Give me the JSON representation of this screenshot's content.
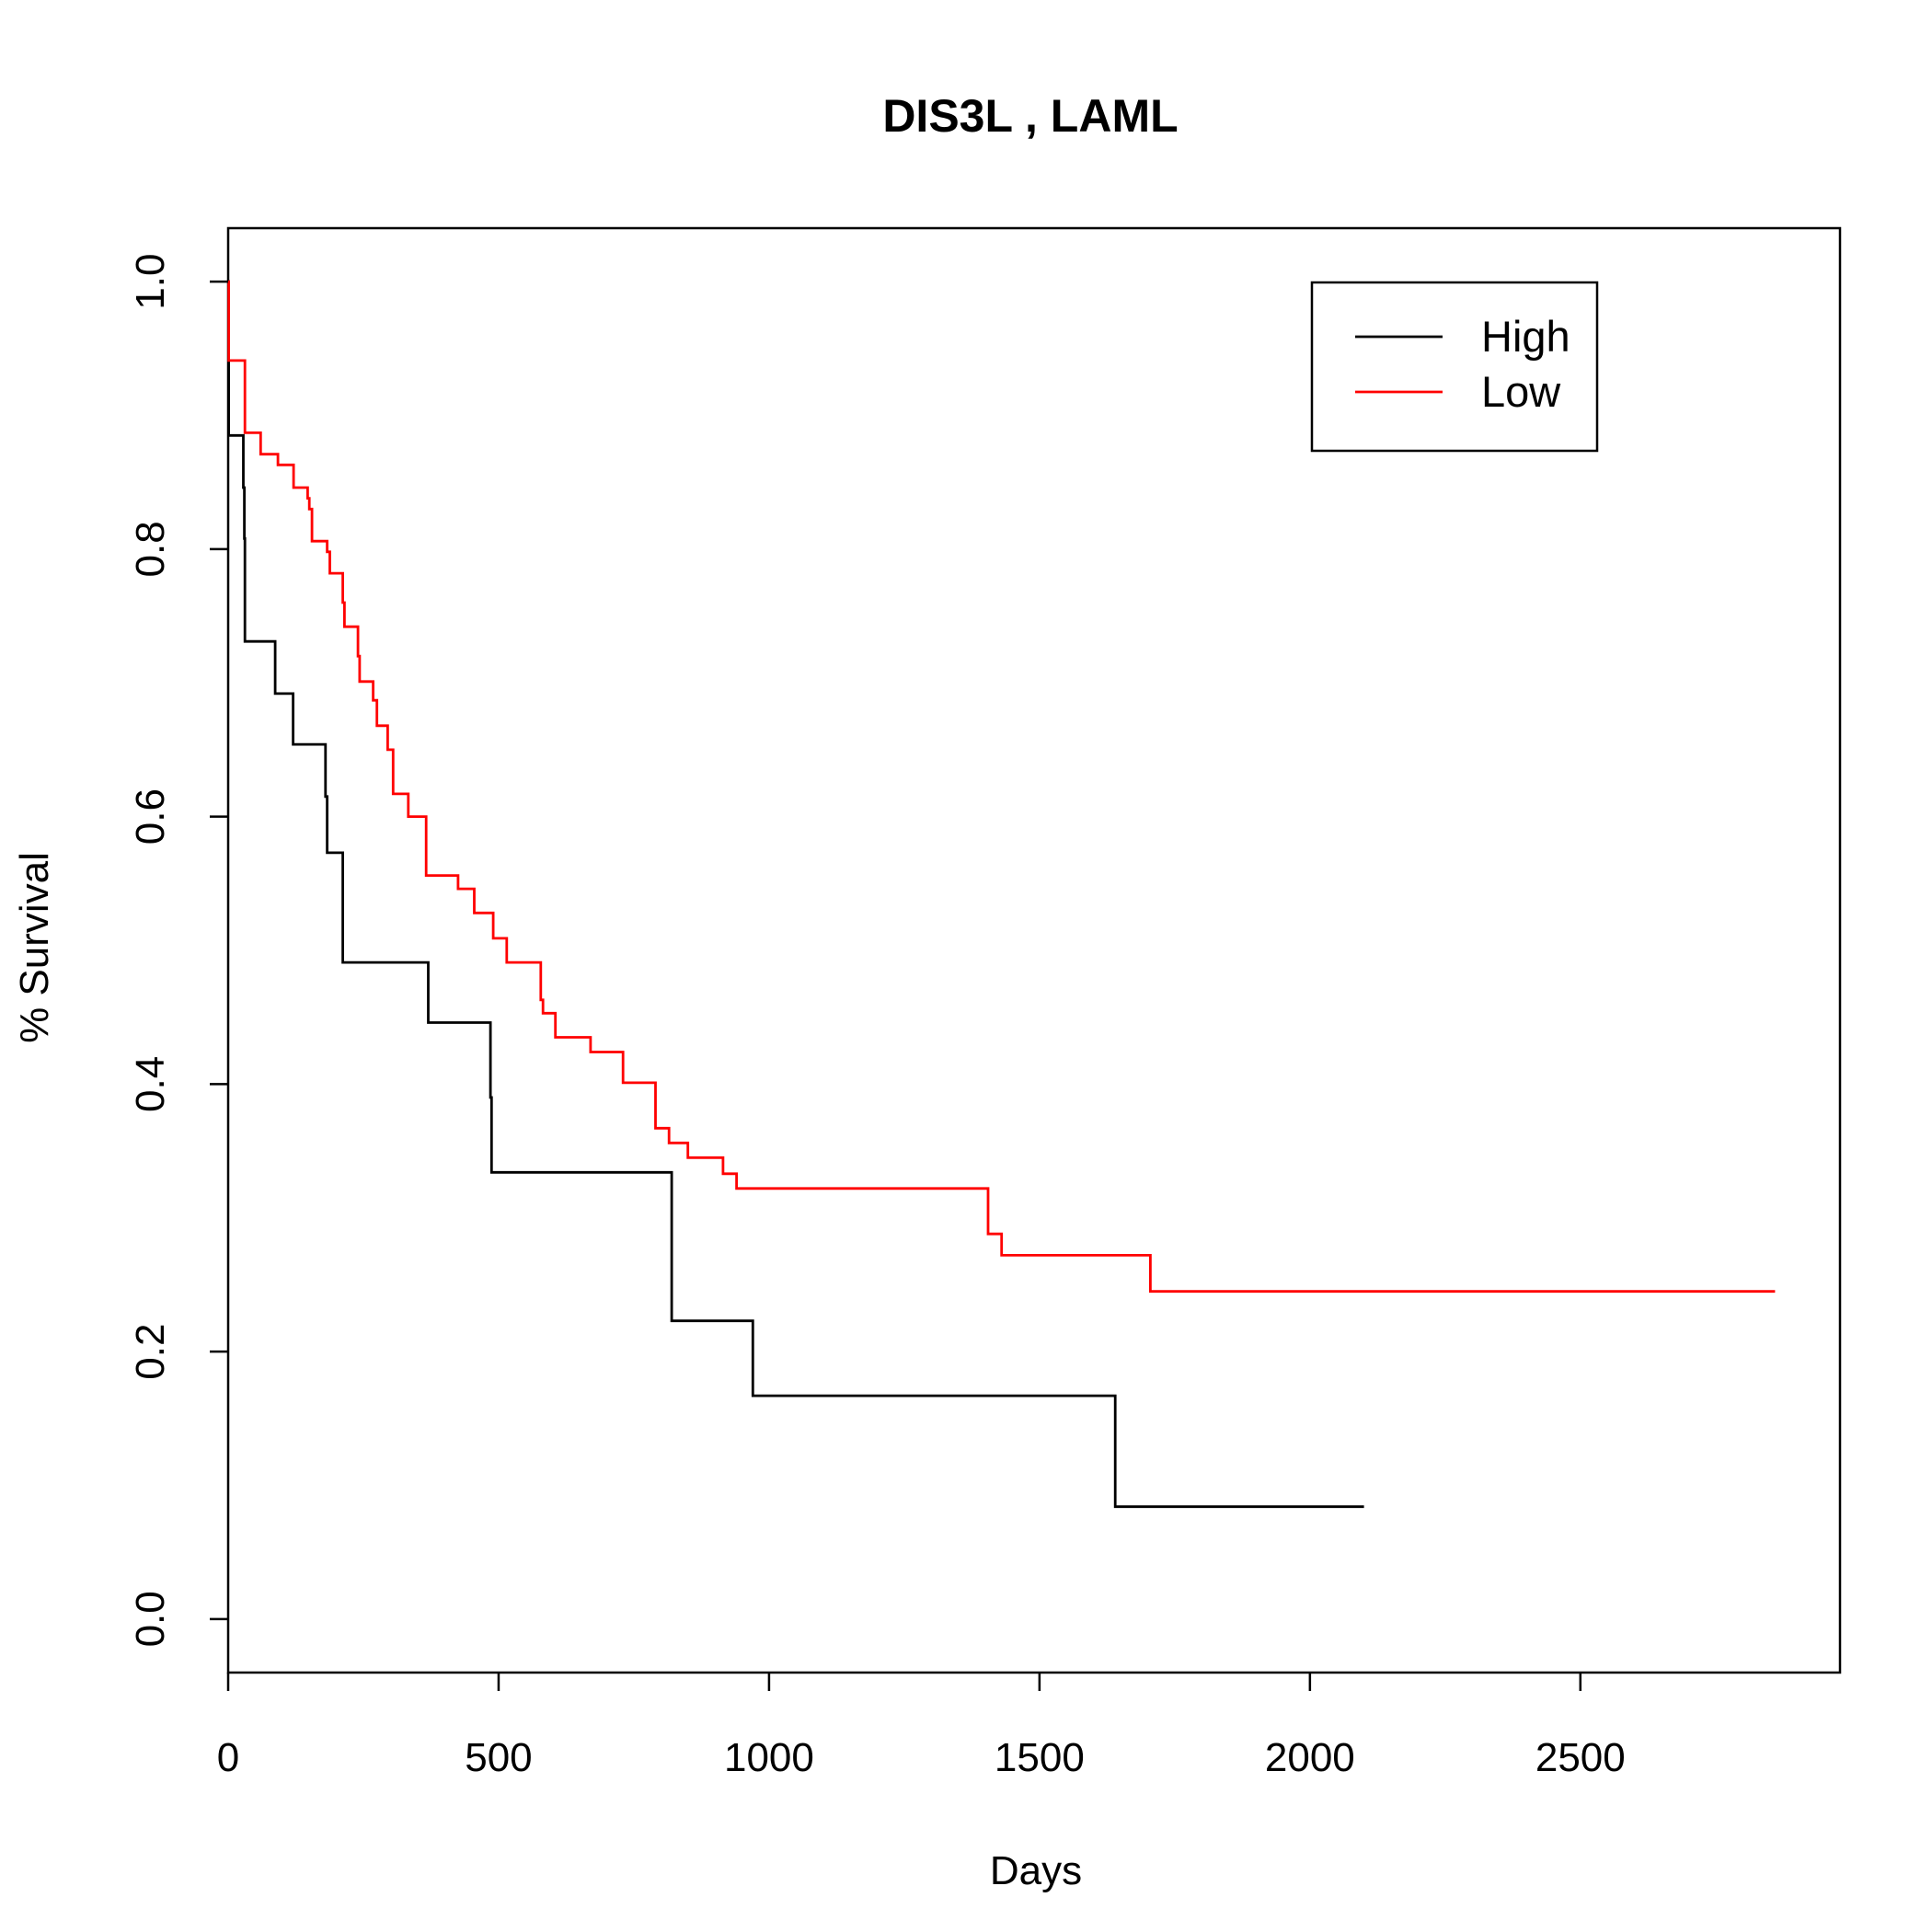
{
  "chart_data": {
    "type": "line",
    "step": true,
    "title": "DIS3L ,  LAML",
    "xlabel": "Days",
    "ylabel": "% Survival",
    "xlim": [
      0,
      2980
    ],
    "ylim": [
      -0.04,
      1.04
    ],
    "xticks": [
      0,
      500,
      1000,
      1500,
      2000,
      2500
    ],
    "yticks": [
      0.0,
      0.2,
      0.4,
      0.6,
      0.8,
      1.0
    ],
    "xtick_labels": [
      "0",
      "500",
      "1000",
      "1500",
      "2000",
      "2500"
    ],
    "ytick_labels": [
      "0.0",
      "0.2",
      "0.4",
      "0.6",
      "0.8",
      "1.0"
    ],
    "legend": {
      "position": "top-right"
    },
    "grid": false,
    "series": [
      {
        "name": "High",
        "color": "#000000",
        "x": [
          0,
          1,
          28,
          30,
          31,
          87,
          120,
          180,
          183,
          212,
          370,
          485,
          487,
          820,
          970,
          1640,
          2100
        ],
        "y": [
          1.0,
          0.885,
          0.846,
          0.808,
          0.731,
          0.692,
          0.654,
          0.615,
          0.573,
          0.491,
          0.446,
          0.39,
          0.334,
          0.223,
          0.167,
          0.084,
          0.084
        ]
      },
      {
        "name": "Low",
        "color": "#ff0000",
        "x": [
          0,
          1,
          31,
          60,
          87,
          92,
          121,
          147,
          150,
          155,
          183,
          188,
          212,
          215,
          240,
          243,
          268,
          275,
          295,
          305,
          333,
          366,
          425,
          455,
          490,
          515,
          578,
          582,
          605,
          670,
          730,
          790,
          815,
          850,
          915,
          940,
          1400,
          1405,
          1430,
          1705,
          2860
        ],
        "y": [
          1.0,
          0.941,
          0.887,
          0.871,
          0.871,
          0.863,
          0.846,
          0.838,
          0.83,
          0.806,
          0.798,
          0.782,
          0.76,
          0.742,
          0.72,
          0.701,
          0.687,
          0.668,
          0.65,
          0.617,
          0.6,
          0.556,
          0.546,
          0.528,
          0.509,
          0.491,
          0.463,
          0.453,
          0.435,
          0.424,
          0.401,
          0.367,
          0.356,
          0.345,
          0.333,
          0.322,
          0.322,
          0.288,
          0.272,
          0.245,
          0.245
        ]
      }
    ]
  }
}
